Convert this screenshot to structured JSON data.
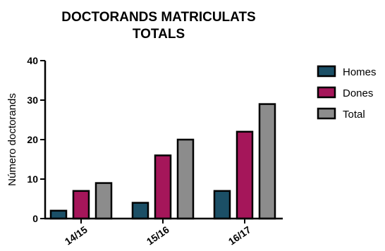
{
  "chart_data": {
    "type": "bar",
    "title_lines": [
      "DOCTORANDS MATRICULATS",
      "TOTALS"
    ],
    "ylabel": "Número doctorands",
    "xlabel": "",
    "categories": [
      "14/15",
      "15/16",
      "16/17"
    ],
    "yticks": [
      0,
      10,
      20,
      30,
      40
    ],
    "ylim": [
      0,
      40
    ],
    "grid": false,
    "legend_position": "right",
    "series": [
      {
        "name": "Homes",
        "values": [
          2,
          4,
          7
        ],
        "color": "#1b4f66"
      },
      {
        "name": "Dones",
        "values": [
          7,
          16,
          22
        ],
        "color": "#a5165a"
      },
      {
        "name": "Total",
        "values": [
          9,
          20,
          29
        ],
        "color": "#8c8c8c"
      }
    ]
  }
}
